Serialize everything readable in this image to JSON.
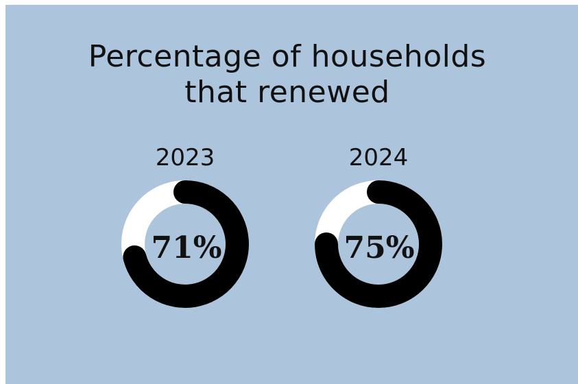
{
  "chart_data": {
    "type": "pie",
    "title_lines": [
      "Percentage of households",
      "that renewed"
    ],
    "colors": {
      "background": "#adc5dc",
      "filled": "#000000",
      "remainder": "#ffffff",
      "text": "#111111"
    },
    "series": [
      {
        "name": "2023",
        "value": 71,
        "label": "71%"
      },
      {
        "name": "2024",
        "value": 75,
        "label": "75%"
      }
    ]
  }
}
